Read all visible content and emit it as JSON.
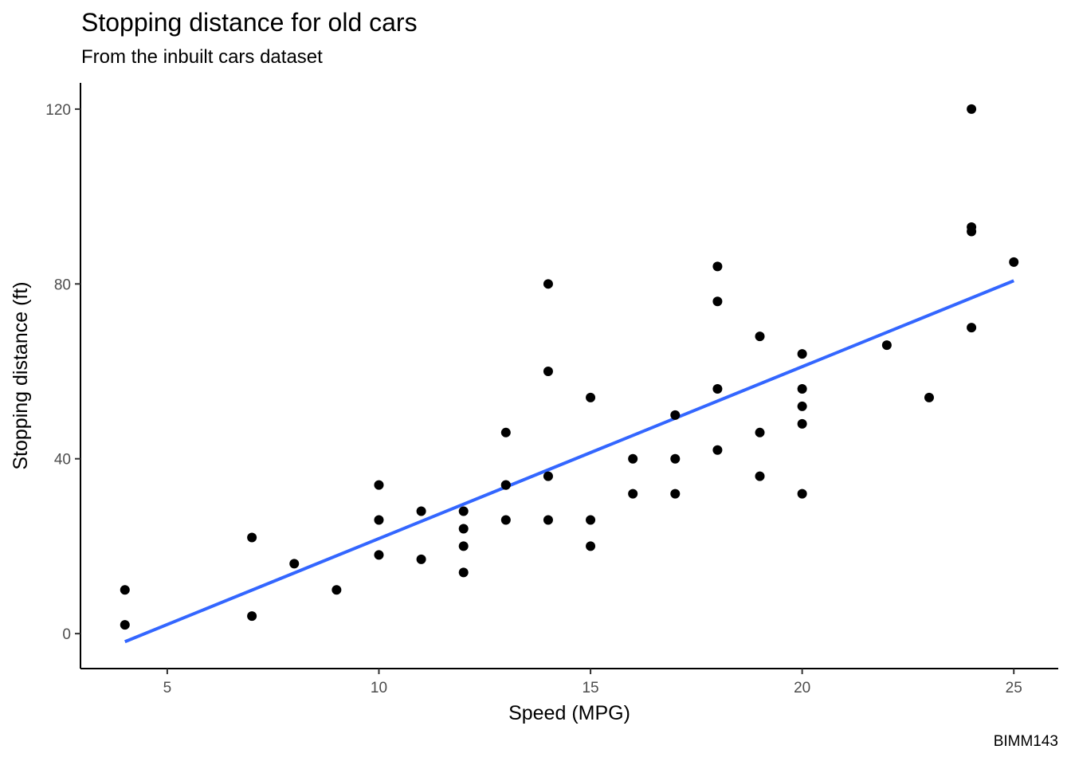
{
  "chart_data": {
    "type": "scatter",
    "title": "Stopping distance for old cars",
    "subtitle": "From the inbuilt cars dataset",
    "caption": "BIMM143",
    "xlabel": "Speed (MPG)",
    "ylabel": "Stopping distance (ft)",
    "xlim": [
      2.95,
      26.05
    ],
    "ylim": [
      -8,
      126
    ],
    "x_ticks": [
      5,
      10,
      15,
      20,
      25
    ],
    "y_ticks": [
      0,
      40,
      80,
      120
    ],
    "grid": false,
    "point_color": "#000000",
    "line_color": "#3366FF",
    "points": [
      {
        "x": 4,
        "y": 2
      },
      {
        "x": 4,
        "y": 10
      },
      {
        "x": 7,
        "y": 4
      },
      {
        "x": 7,
        "y": 22
      },
      {
        "x": 8,
        "y": 16
      },
      {
        "x": 9,
        "y": 10
      },
      {
        "x": 10,
        "y": 18
      },
      {
        "x": 10,
        "y": 26
      },
      {
        "x": 10,
        "y": 34
      },
      {
        "x": 11,
        "y": 17
      },
      {
        "x": 11,
        "y": 28
      },
      {
        "x": 12,
        "y": 14
      },
      {
        "x": 12,
        "y": 20
      },
      {
        "x": 12,
        "y": 24
      },
      {
        "x": 12,
        "y": 28
      },
      {
        "x": 13,
        "y": 26
      },
      {
        "x": 13,
        "y": 34
      },
      {
        "x": 13,
        "y": 34
      },
      {
        "x": 13,
        "y": 46
      },
      {
        "x": 14,
        "y": 26
      },
      {
        "x": 14,
        "y": 36
      },
      {
        "x": 14,
        "y": 60
      },
      {
        "x": 14,
        "y": 80
      },
      {
        "x": 15,
        "y": 20
      },
      {
        "x": 15,
        "y": 26
      },
      {
        "x": 15,
        "y": 54
      },
      {
        "x": 16,
        "y": 32
      },
      {
        "x": 16,
        "y": 40
      },
      {
        "x": 17,
        "y": 32
      },
      {
        "x": 17,
        "y": 40
      },
      {
        "x": 17,
        "y": 50
      },
      {
        "x": 18,
        "y": 42
      },
      {
        "x": 18,
        "y": 56
      },
      {
        "x": 18,
        "y": 76
      },
      {
        "x": 18,
        "y": 84
      },
      {
        "x": 19,
        "y": 36
      },
      {
        "x": 19,
        "y": 46
      },
      {
        "x": 19,
        "y": 68
      },
      {
        "x": 20,
        "y": 32
      },
      {
        "x": 20,
        "y": 48
      },
      {
        "x": 20,
        "y": 52
      },
      {
        "x": 20,
        "y": 56
      },
      {
        "x": 20,
        "y": 64
      },
      {
        "x": 22,
        "y": 66
      },
      {
        "x": 23,
        "y": 54
      },
      {
        "x": 24,
        "y": 70
      },
      {
        "x": 24,
        "y": 92
      },
      {
        "x": 24,
        "y": 93
      },
      {
        "x": 24,
        "y": 120
      },
      {
        "x": 25,
        "y": 85
      }
    ],
    "trend_line": {
      "x": [
        4,
        25
      ],
      "y": [
        -1.85,
        80.73
      ]
    }
  }
}
